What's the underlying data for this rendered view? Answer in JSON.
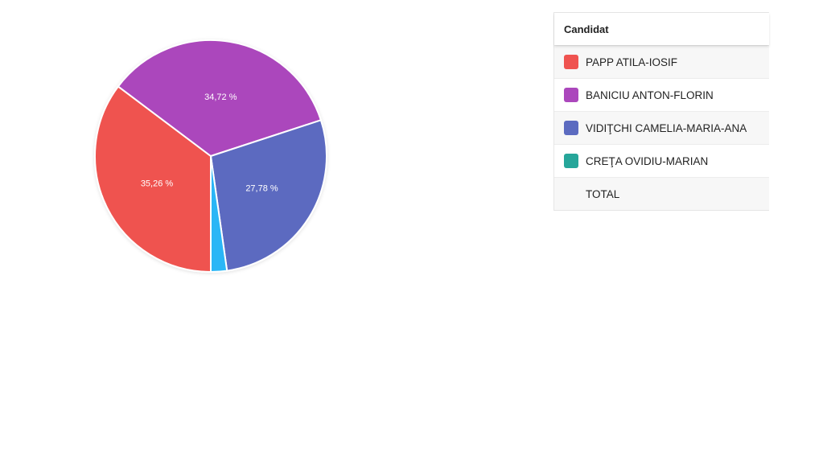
{
  "chart_data": {
    "type": "pie",
    "slices": [
      {
        "name": "PAPP ATILA-IOSIF",
        "value": 35.26,
        "label": "35,26 %",
        "color": "#ef5350"
      },
      {
        "name": "BANICIU ANTON-FLORIN",
        "value": 34.72,
        "label": "34,72 %",
        "color": "#ab47bc"
      },
      {
        "name": "VIDIŢCHI CAMELIA-MARIA-ANA",
        "value": 27.78,
        "label": "27,78 %",
        "color": "#5c6bc0"
      },
      {
        "name": "CREŢA OVIDIU-MARIAN",
        "value": 2.24,
        "label": "",
        "color": "#29b6f6"
      }
    ]
  },
  "legend": {
    "header": "Candidat",
    "rows": [
      {
        "label": "PAPP ATILA-IOSIF",
        "color": "#ef5350"
      },
      {
        "label": "BANICIU ANTON-FLORIN",
        "color": "#ab47bc"
      },
      {
        "label": "VIDIŢCHI CAMELIA-MARIA-ANA",
        "color": "#5c6bc0"
      },
      {
        "label": "CREŢA OVIDIU-MARIAN",
        "color": "#26a69a"
      },
      {
        "label": "TOTAL",
        "color": ""
      }
    ]
  }
}
